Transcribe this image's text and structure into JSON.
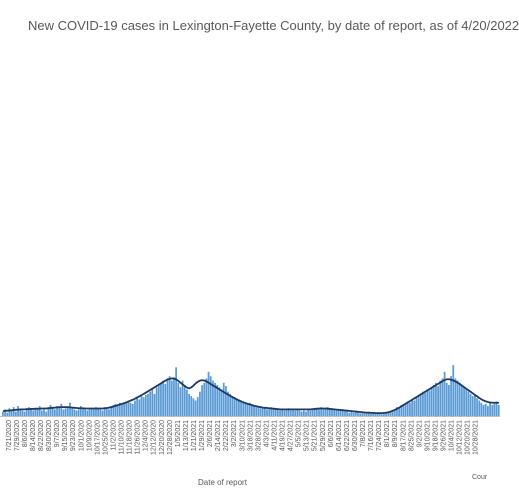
{
  "chart_data": {
    "type": "bar",
    "title": "New COVID-19 cases in Lexington-Fayette County, by date of report, as of 4/20/2022",
    "xlabel": "Date of report",
    "ylabel": "",
    "credit": "Cour",
    "colors": {
      "bars": "#5b9bd5",
      "line": "#1f3864",
      "axis": "#bfbfbf",
      "text": "#595959"
    },
    "tick_labels": [
      "7/21/2020",
      "7/29/2020",
      "8/6/2020",
      "8/14/2020",
      "8/22/2020",
      "8/30/2020",
      "9/7/2020",
      "9/15/2020",
      "9/23/2020",
      "10/1/2020",
      "10/9/2020",
      "10/17/2020",
      "10/25/2020",
      "11/2/2020",
      "11/10/2020",
      "11/18/2020",
      "11/26/2020",
      "12/4/2020",
      "12/12/2020",
      "12/20/2020",
      "12/28/2020",
      "1/5/2021",
      "1/13/2021",
      "1/21/2021",
      "1/29/2021",
      "2/6/2021",
      "2/14/2021",
      "2/22/2021",
      "3/2/2021",
      "3/10/2021",
      "3/18/2021",
      "3/28/2021",
      "4/3/2021",
      "4/11/2021",
      "4/19/2021",
      "4/27/2021",
      "5/5/2021",
      "5/13/2021",
      "5/21/2021",
      "5/29/2021",
      "6/6/2021",
      "6/14/2021",
      "6/22/2021",
      "6/30/2021",
      "7/8/2021",
      "7/16/2021",
      "7/24/2021",
      "8/1/2021",
      "8/9/2021",
      "8/17/2021",
      "8/25/2021",
      "9/2/2021",
      "9/10/2021",
      "9/18/2021",
      "9/26/2021",
      "10/4/2021",
      "10/12/2021",
      "10/20/2021",
      "10/28/2021"
    ],
    "series": [
      {
        "kind": "bar",
        "values": [
          20,
          30,
          15,
          35,
          25,
          40,
          20,
          45,
          30,
          25,
          20,
          35,
          40,
          30,
          25,
          30,
          35,
          45,
          25,
          30,
          20,
          40,
          50,
          35,
          30,
          45,
          40,
          55,
          30,
          35,
          40,
          60,
          35,
          30,
          25,
          30,
          45,
          35,
          30,
          25,
          30,
          35,
          30,
          40,
          35,
          30,
          25,
          40,
          35,
          30,
          45,
          50,
          55,
          45,
          60,
          50,
          55,
          65,
          70,
          60,
          55,
          70,
          80,
          75,
          90,
          85,
          95,
          100,
          110,
          120,
          100,
          130,
          140,
          150,
          160,
          145,
          170,
          180,
          160,
          175,
          220,
          150,
          130,
          160,
          140,
          120,
          100,
          90,
          80,
          70,
          85,
          110,
          140,
          150,
          170,
          200,
          180,
          160,
          150,
          140,
          130,
          120,
          150,
          135,
          110,
          100,
          90,
          85,
          80,
          75,
          70,
          65,
          60,
          55,
          60,
          50,
          45,
          40,
          45,
          35,
          40,
          35,
          30,
          35,
          40,
          30,
          35,
          30,
          25,
          30,
          25,
          30,
          35,
          25,
          30,
          25,
          30,
          25,
          20,
          25,
          20,
          30,
          25,
          30,
          35,
          30,
          35,
          40,
          30,
          35,
          40,
          30,
          35,
          30,
          25,
          30,
          25,
          30,
          25,
          20,
          15,
          20,
          15,
          20,
          15,
          12,
          15,
          12,
          10,
          12,
          10,
          12,
          10,
          12,
          10,
          8,
          10,
          12,
          15,
          20,
          25,
          30,
          40,
          35,
          50,
          45,
          55,
          65,
          60,
          75,
          70,
          85,
          90,
          100,
          110,
          105,
          120,
          115,
          130,
          140,
          150,
          135,
          160,
          170,
          200,
          150,
          140,
          180,
          230,
          170,
          160,
          150,
          140,
          130,
          120,
          110,
          100,
          90,
          95,
          80,
          70,
          60,
          50,
          55,
          45,
          60,
          50,
          55,
          65,
          50
        ]
      },
      {
        "kind": "line",
        "name": "",
        "values": [
          22,
          23,
          24,
          25,
          26,
          27,
          28,
          29,
          30,
          30,
          30,
          31,
          31,
          32,
          32,
          33,
          33,
          33,
          34,
          34,
          34,
          35,
          36,
          37,
          38,
          39,
          40,
          40,
          40,
          40,
          40,
          39,
          38,
          37,
          36,
          35,
          35,
          35,
          34,
          34,
          34,
          34,
          34,
          34,
          34,
          34,
          34,
          35,
          36,
          38,
          40,
          43,
          46,
          49,
          52,
          55,
          58,
          62,
          66,
          70,
          74,
          79,
          84,
          89,
          95,
          100,
          106,
          112,
          118,
          124,
          130,
          136,
          142,
          148,
          154,
          160,
          165,
          168,
          170,
          169,
          165,
          158,
          150,
          142,
          135,
          128,
          125,
          130,
          138,
          148,
          155,
          160,
          162,
          160,
          156,
          150,
          144,
          138,
          132,
          126,
          120,
          114,
          108,
          102,
          96,
          90,
          85,
          80,
          75,
          70,
          66,
          62,
          58,
          55,
          52,
          49,
          46,
          44,
          42,
          40,
          38,
          37,
          36,
          35,
          34,
          33,
          32,
          31,
          30,
          30,
          30,
          30,
          30,
          30,
          30,
          30,
          30,
          30,
          30,
          30,
          30,
          30,
          30,
          31,
          32,
          33,
          34,
          34,
          34,
          34,
          33,
          32,
          31,
          30,
          29,
          28,
          27,
          26,
          25,
          24,
          23,
          22,
          21,
          20,
          19,
          18,
          17,
          16,
          15,
          15,
          14,
          14,
          13,
          13,
          13,
          13,
          14,
          15,
          17,
          20,
          24,
          28,
          33,
          38,
          44,
          50,
          56,
          62,
          68,
          74,
          80,
          86,
          92,
          98,
          104,
          110,
          116,
          122,
          128,
          134,
          140,
          146,
          152,
          158,
          163,
          166,
          166,
          164,
          160,
          156,
          150,
          144,
          137,
          130,
          123,
          116,
          109,
          102,
          95,
          88,
          81,
          75,
          70,
          66,
          63,
          61,
          60,
          60,
          60,
          60
        ]
      }
    ]
  }
}
